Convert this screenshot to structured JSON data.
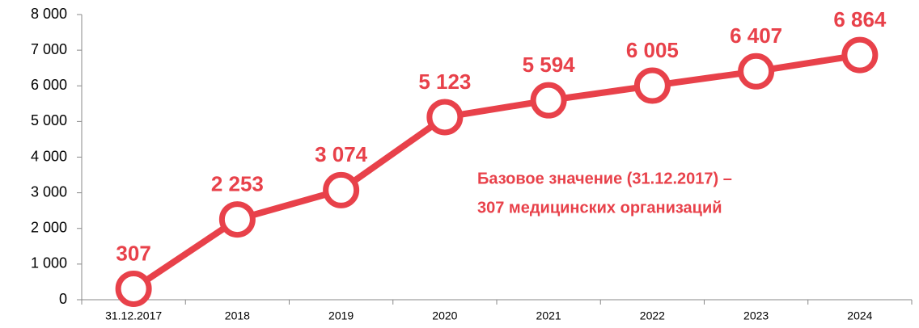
{
  "chart_data": {
    "type": "line",
    "categories": [
      "31.12.2017",
      "2018",
      "2019",
      "2020",
      "2021",
      "2022",
      "2023",
      "2024"
    ],
    "series": [
      {
        "color": "#e8414a",
        "values": [
          307,
          2253,
          3074,
          5123,
          5594,
          6005,
          6407,
          6864
        ],
        "value_labels": [
          "307",
          "2 253",
          "3 074",
          "5 123",
          "5 594",
          "6 005",
          "6 407",
          "6 864"
        ]
      }
    ],
    "ylim": [
      0,
      8000
    ],
    "yticks": [
      0,
      {
        "value": 1000,
        "label": "1 000"
      },
      {
        "value": 2000,
        "label": "2 000"
      },
      {
        "value": 3000,
        "label": "3 000"
      },
      {
        "value": 4000,
        "label": "4 000"
      },
      {
        "value": 5000,
        "label": "5 000"
      },
      {
        "value": 6000,
        "label": "6 000"
      },
      {
        "value": 7000,
        "label": "7 000"
      },
      {
        "value": 8000,
        "label": "8 000"
      }
    ],
    "grid": false,
    "annotations": [
      "Базовое значение (31.12.2017) –",
      "307 медицинских организаций"
    ]
  }
}
